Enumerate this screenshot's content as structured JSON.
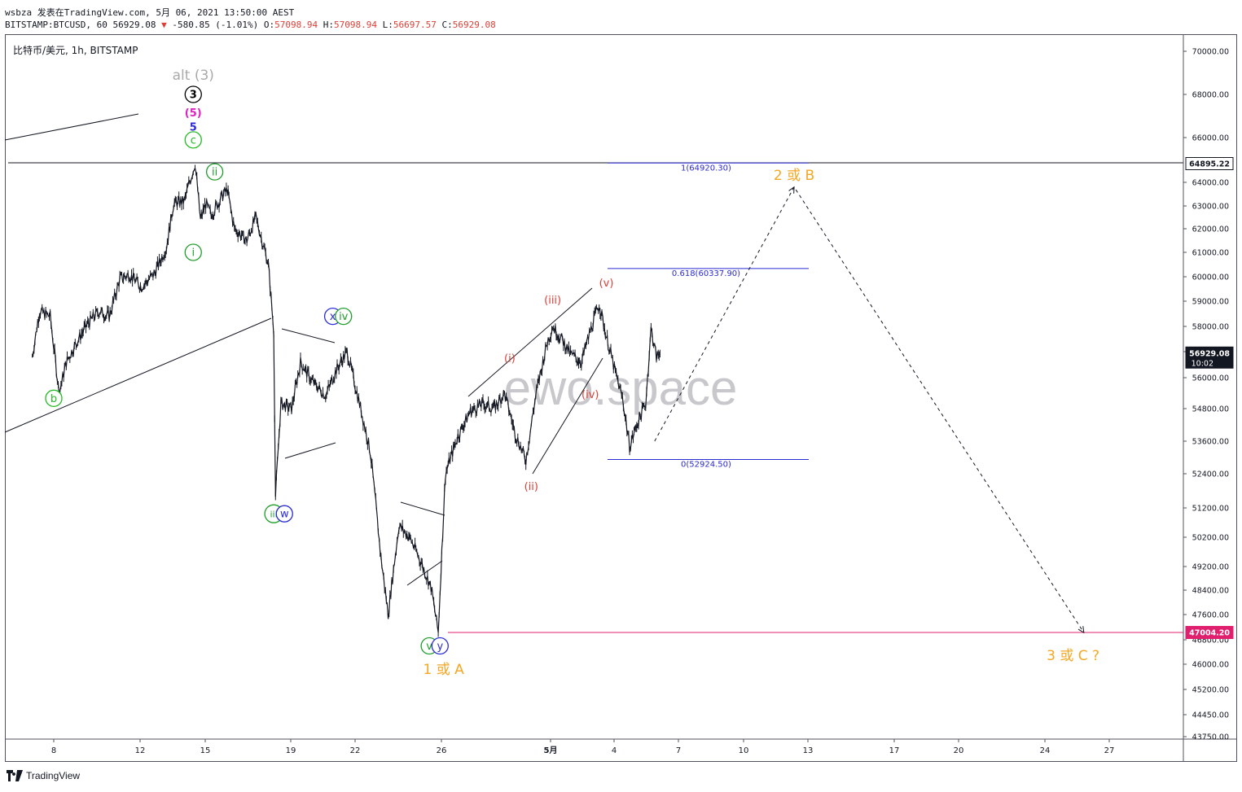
{
  "header": {
    "line1": "wsbza 发表在TradingView.com, 5月 06, 2021 13:50:00 AEST",
    "line2_symbol": "BITSTAMP:BTCUSD, 60",
    "line2_price": "56929.08",
    "line2_change": "-580.85 (-1.01%)",
    "o_label": "O:",
    "o_value": "57098.94",
    "h_label": "H:",
    "h_value": "57098.94",
    "l_label": "L:",
    "l_value": "56697.57",
    "c_label": "C:",
    "c_value": "56929.08"
  },
  "footer": {
    "brand": "TradingView"
  },
  "chart_data": {
    "type": "candlestick",
    "title": "比特币/美元, 1h, BITSTAMP",
    "watermark": "ewo.space",
    "colors": {
      "price": "#131722",
      "blue": "#2a2ad4",
      "green": "#1e9e2a",
      "red": "#e03e36",
      "orange": "#f5a623",
      "magenta": "#e020c0",
      "pink": "#e0206e"
    },
    "x_ticks": [
      "8",
      "12",
      "15",
      "19",
      "22",
      "26",
      "5月",
      "4",
      "7",
      "10",
      "13",
      "17",
      "20",
      "24",
      "27"
    ],
    "y_ticks": [
      "70000.00",
      "68000.00",
      "66000.00",
      "64000.00",
      "63000.00",
      "62000.00",
      "61000.00",
      "60000.00",
      "59000.00",
      "58000.00",
      "57000.00",
      "56000.00",
      "54800.00",
      "53600.00",
      "52400.00",
      "51200.00",
      "50200.00",
      "49200.00",
      "48400.00",
      "47600.00",
      "46800.00",
      "46000.00",
      "45200.00",
      "44450.00",
      "43750.00"
    ],
    "price_labels": [
      {
        "text": "64895.22",
        "value": 64895.22
      },
      {
        "text": "56929.08",
        "sub": "10:02",
        "value": 56929.08
      },
      {
        "text": "47004.20",
        "value": 47004.2
      }
    ],
    "price_path": [
      [
        "2021-04-07T00:00",
        56800
      ],
      [
        "2021-04-07T08:00",
        58600
      ],
      [
        "2021-04-07T20:00",
        58400
      ],
      [
        "2021-04-08T02:00",
        56600
      ],
      [
        "2021-04-08T06:00",
        55400
      ],
      [
        "2021-04-08T14:00",
        56600
      ],
      [
        "2021-04-09T02:00",
        57400
      ],
      [
        "2021-04-09T14:00",
        58100
      ],
      [
        "2021-04-10T02:00",
        58600
      ],
      [
        "2021-04-10T14:00",
        58400
      ],
      [
        "2021-04-11T02:00",
        59900
      ],
      [
        "2021-04-11T12:00",
        60100
      ],
      [
        "2021-04-12T02:00",
        59600
      ],
      [
        "2021-04-12T16:00",
        60100
      ],
      [
        "2021-04-13T06:00",
        61200
      ],
      [
        "2021-04-13T14:00",
        63100
      ],
      [
        "2021-04-14T02:00",
        63200
      ],
      [
        "2021-04-14T10:00",
        64300
      ],
      [
        "2021-04-14T14:00",
        64895
      ],
      [
        "2021-04-14T20:00",
        62400
      ],
      [
        "2021-04-15T02:00",
        63100
      ],
      [
        "2021-04-15T08:00",
        62600
      ],
      [
        "2021-04-15T20:00",
        63400
      ],
      [
        "2021-04-16T02:00",
        63700
      ],
      [
        "2021-04-16T10:00",
        62000
      ],
      [
        "2021-04-17T00:00",
        61500
      ],
      [
        "2021-04-17T10:00",
        62500
      ],
      [
        "2021-04-18T00:00",
        60500
      ],
      [
        "2021-04-18T06:00",
        57800
      ],
      [
        "2021-04-18T08:00",
        51600
      ],
      [
        "2021-04-18T14:00",
        55000
      ],
      [
        "2021-04-19T02:00",
        54800
      ],
      [
        "2021-04-19T12:00",
        56600
      ],
      [
        "2021-04-20T00:00",
        55900
      ],
      [
        "2021-04-20T16:00",
        55300
      ],
      [
        "2021-04-21T04:00",
        56300
      ],
      [
        "2021-04-21T16:00",
        57000
      ],
      [
        "2021-04-22T06:00",
        55000
      ],
      [
        "2021-04-22T18:00",
        53200
      ],
      [
        "2021-04-23T06:00",
        49500
      ],
      [
        "2021-04-23T14:00",
        47600
      ],
      [
        "2021-04-24T02:00",
        50600
      ],
      [
        "2021-04-24T14:00",
        50200
      ],
      [
        "2021-04-25T02:00",
        49400
      ],
      [
        "2021-04-25T14:00",
        48500
      ],
      [
        "2021-04-25T22:00",
        47004
      ],
      [
        "2021-04-26T06:00",
        52400
      ],
      [
        "2021-04-26T20:00",
        53800
      ],
      [
        "2021-04-27T10:00",
        54700
      ],
      [
        "2021-04-28T00:00",
        55000
      ],
      [
        "2021-04-28T12:00",
        54800
      ],
      [
        "2021-04-29T00:00",
        55400
      ],
      [
        "2021-04-29T12:00",
        53900
      ],
      [
        "2021-04-30T00:00",
        52900
      ],
      [
        "2021-04-30T12:00",
        55500
      ],
      [
        "2021-05-01T00:00",
        57400
      ],
      [
        "2021-05-01T06:00",
        58000
      ],
      [
        "2021-05-01T16:00",
        57500
      ],
      [
        "2021-05-02T02:00",
        56900
      ],
      [
        "2021-05-02T14:00",
        56600
      ],
      [
        "2021-05-03T00:00",
        57800
      ],
      [
        "2021-05-03T10:00",
        58900
      ],
      [
        "2021-05-03T18:00",
        57600
      ],
      [
        "2021-05-04T04:00",
        56200
      ],
      [
        "2021-05-04T12:00",
        55200
      ],
      [
        "2021-05-04T20:00",
        53400
      ],
      [
        "2021-05-05T04:00",
        54200
      ],
      [
        "2021-05-05T14:00",
        55000
      ],
      [
        "2021-05-05T20:00",
        57900
      ],
      [
        "2021-05-06T02:00",
        56800
      ],
      [
        "2021-05-06T06:00",
        56929
      ]
    ],
    "fib_levels": [
      {
        "label": "1(64920.30)",
        "value": 64920.3
      },
      {
        "label": "0.618(60337.90)",
        "value": 60337.9
      },
      {
        "label": "0(52924.50)",
        "value": 52924.5
      }
    ],
    "projection": [
      [
        "2021-05-06T00:00",
        53600
      ],
      [
        "2021-05-12T12:00",
        63800
      ],
      [
        "2021-05-26T00:00",
        47000
      ]
    ],
    "labels": [
      {
        "text": "alt (3)",
        "style": "plain",
        "color": "#aaaaaa",
        "x": "2021-04-14T12:00",
        "y": 68900
      },
      {
        "text": "3",
        "style": "circle",
        "color": "#000000",
        "x": "2021-04-14T12:00",
        "y": 68000
      },
      {
        "text": "(5)",
        "style": "plain",
        "color": "#e020c0",
        "x": "2021-04-14T12:00",
        "y": 67200
      },
      {
        "text": "5",
        "style": "plain",
        "color": "#2a2ad4",
        "x": "2021-04-14T12:00",
        "y": 66550
      },
      {
        "text": "c",
        "style": "circle",
        "color": "#22bb22",
        "x": "2021-04-14T12:00",
        "y": 65900
      },
      {
        "text": "ii",
        "style": "circle",
        "color": "#1e9e2a",
        "x": "2021-04-15T12:00",
        "y": 64500
      },
      {
        "text": "i",
        "style": "circle",
        "color": "#1e9e2a",
        "x": "2021-04-14T12:00",
        "y": 61000
      },
      {
        "text": "b",
        "style": "circle",
        "color": "#22bb22",
        "x": "2021-04-08T00:00",
        "y": 55200
      },
      {
        "text": "x",
        "style": "circle",
        "color": "#2a2ad4",
        "x": "2021-04-21T00:00",
        "y": 58400
      },
      {
        "text": "iv",
        "style": "circle",
        "color": "#1e9e2a",
        "x": "2021-04-21T12:00",
        "y": 58400
      },
      {
        "text": "iii",
        "style": "circle",
        "color": "#1e9e2a",
        "x": "2021-04-18T06:00",
        "y": 51000
      },
      {
        "text": "w",
        "style": "circle",
        "color": "#2a2ad4",
        "x": "2021-04-18T18:00",
        "y": 51000
      },
      {
        "text": "v",
        "style": "circle",
        "color": "#1e9e2a",
        "x": "2021-04-25T12:00",
        "y": 46600
      },
      {
        "text": "y",
        "style": "circle",
        "color": "#2a2ad4",
        "x": "2021-04-26T00:00",
        "y": 46600
      },
      {
        "text": "1 或 A",
        "style": "plain",
        "color": "#f5a623",
        "x": "2021-04-26T04:00",
        "y": 45850
      },
      {
        "text": "(i)",
        "style": "plain",
        "color": "#e03e36",
        "x": "2021-04-29T06:00",
        "y": 56800
      },
      {
        "text": "(ii)",
        "style": "plain",
        "color": "#e03e36",
        "x": "2021-04-30T06:00",
        "y": 52000
      },
      {
        "text": "(iii)",
        "style": "plain",
        "color": "#e03e36",
        "x": "2021-05-01T06:00",
        "y": 59100
      },
      {
        "text": "(iv)",
        "style": "plain",
        "color": "#e03e36",
        "x": "2021-05-03T00:00",
        "y": 55400
      },
      {
        "text": "(v)",
        "style": "plain",
        "color": "#e03e36",
        "x": "2021-05-03T18:00",
        "y": 59800
      },
      {
        "text": "2 或 B",
        "style": "plain",
        "color": "#f5a623",
        "x": "2021-05-12T12:00",
        "y": 64350
      },
      {
        "text": "3 或 C ?",
        "style": "plain",
        "color": "#f5a623",
        "x": "2021-05-25T12:00",
        "y": 46300
      }
    ]
  }
}
